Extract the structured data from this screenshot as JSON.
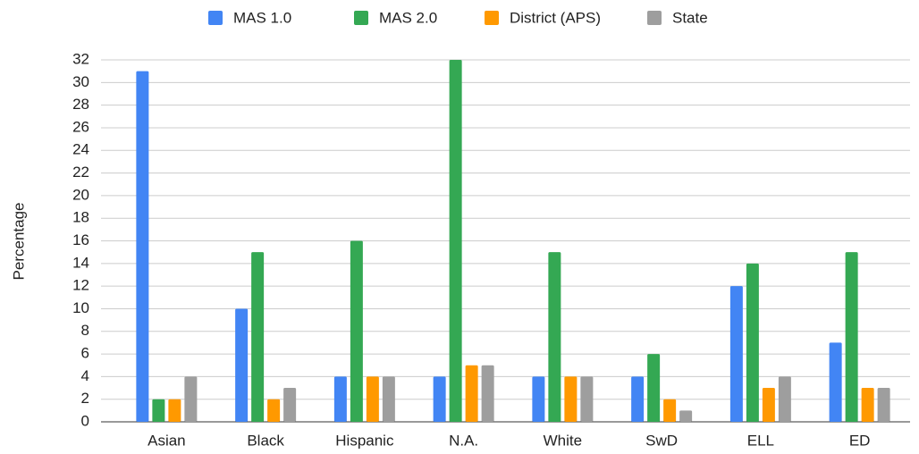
{
  "chart_data": {
    "type": "bar",
    "y_label": "Percentage",
    "categories": [
      "Asian",
      "Black",
      "Hispanic",
      "N.A.",
      "White",
      "SwD",
      "ELL",
      "ED"
    ],
    "series": [
      {
        "name": "MAS 1.0",
        "color": "#4285f4",
        "values": [
          31,
          10,
          4,
          4,
          4,
          4,
          12,
          7
        ]
      },
      {
        "name": "MAS 2.0",
        "color": "#34a853",
        "values": [
          2,
          15,
          16,
          32,
          15,
          6,
          14,
          15
        ]
      },
      {
        "name": "District (APS)",
        "color": "#ff9900",
        "values": [
          2,
          2,
          4,
          5,
          4,
          2,
          3,
          3
        ]
      },
      {
        "name": "State",
        "color": "#9e9e9e",
        "values": [
          4,
          3,
          4,
          5,
          4,
          1,
          4,
          3
        ]
      }
    ],
    "ylim": [
      0,
      32
    ],
    "yticks": [
      0,
      2,
      4,
      6,
      8,
      10,
      12,
      14,
      16,
      18,
      20,
      22,
      24,
      26,
      28,
      30,
      32
    ],
    "grid": true,
    "legend": "top"
  }
}
